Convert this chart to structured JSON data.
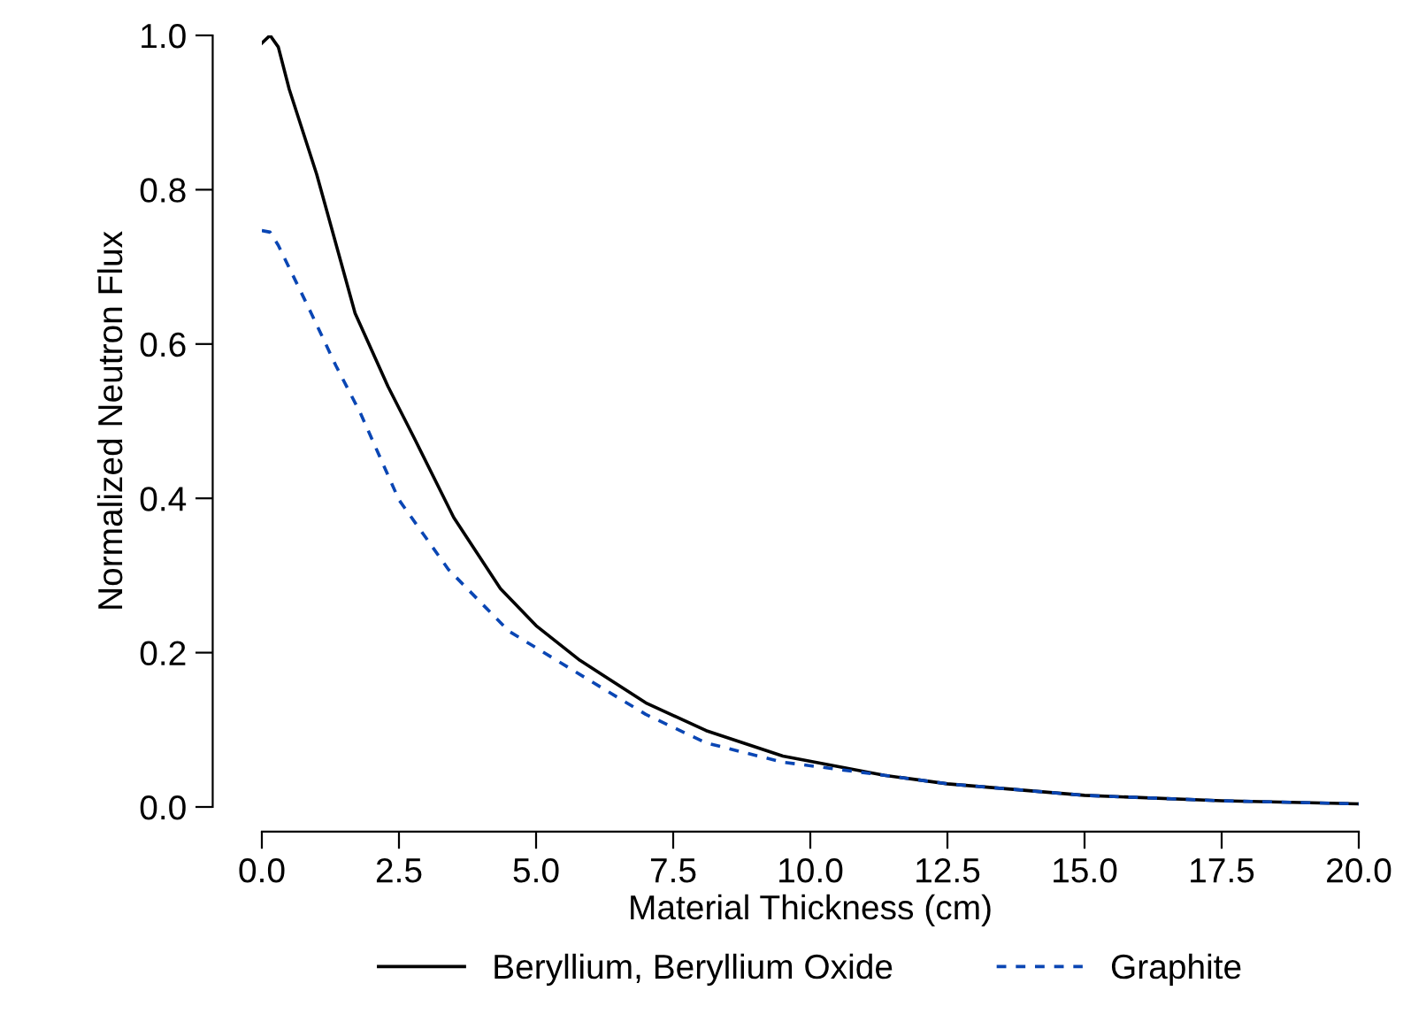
{
  "chart_data": {
    "type": "line",
    "xlabel": "Material Thickness (cm)",
    "ylabel": "Normalized Neutron Flux",
    "xlim": [
      0,
      20
    ],
    "xticks": [
      {
        "value": 0,
        "label": "0.0"
      },
      2.5,
      {
        "value": 5,
        "label": "5.0"
      },
      7.5,
      {
        "value": 10,
        "label": "10.0"
      },
      12.5,
      {
        "value": 15,
        "label": "15.0"
      },
      17.5,
      {
        "value": 20,
        "label": "20.0"
      }
    ],
    "ylim": [
      0,
      1
    ],
    "yticks": [
      {
        "value": 0,
        "label": "0.0"
      },
      0.2,
      0.4,
      0.6,
      0.8,
      {
        "value": 1,
        "label": "1.0"
      }
    ],
    "grid": false,
    "legend": "bottom",
    "series": [
      {
        "name": "Beryllium, Beryllium Oxide",
        "color": "#000000",
        "line_style": "solid",
        "x": [
          0,
          0.15,
          0.3,
          0.5,
          1.0,
          1.7,
          2.3,
          2.8,
          3.5,
          4.35,
          5.0,
          5.8,
          7,
          8.1,
          9.5,
          11.35,
          12.5,
          15,
          17.5,
          20
        ],
        "values": [
          0.99,
          1.0,
          0.985,
          0.93,
          0.82,
          0.64,
          0.545,
          0.475,
          0.375,
          0.283,
          0.235,
          0.19,
          0.135,
          0.099,
          0.066,
          0.041,
          0.03,
          0.015,
          0.008,
          0.004
        ]
      },
      {
        "name": "Graphite",
        "color": "#0a46b4",
        "line_style": "dashed",
        "x": [
          0,
          0.15,
          0.3,
          0.9,
          1.35,
          1.8,
          2.5,
          3.4,
          4.5,
          6,
          7,
          8.1,
          9.5,
          11.35,
          12.5,
          15,
          17.5,
          20
        ],
        "values": [
          0.747,
          0.745,
          0.728,
          0.64,
          0.572,
          0.51,
          0.398,
          0.308,
          0.228,
          0.163,
          0.12,
          0.083,
          0.058,
          0.041,
          0.03,
          0.015,
          0.008,
          0.004
        ]
      }
    ]
  }
}
